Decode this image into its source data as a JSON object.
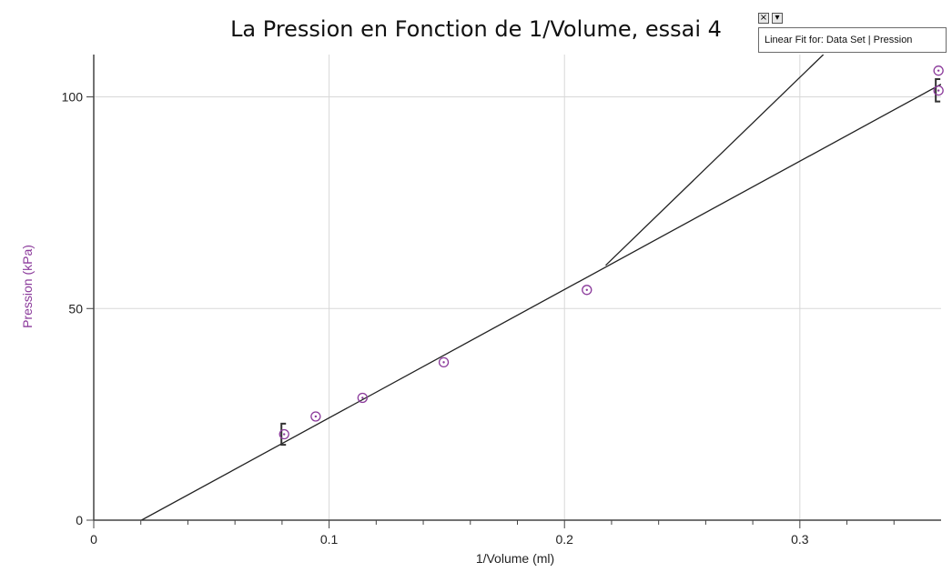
{
  "chart_data": {
    "type": "scatter",
    "title": "La Pression en Fonction de 1/Volume, essai 4",
    "xlabel": "1/Volume  (ml)",
    "ylabel": "Pression  (kPa)",
    "xlim": [
      0,
      0.36
    ],
    "ylim": [
      0,
      110
    ],
    "x_ticks": [
      "0",
      "0.1",
      "0.2",
      "0.3"
    ],
    "y_ticks": [
      "0",
      "50",
      "100"
    ],
    "grid": true,
    "series": [
      {
        "points": [
          {
            "x": 0.0809,
            "y": 20.3
          },
          {
            "x": 0.0943,
            "y": 24.5
          },
          {
            "x": 0.1142,
            "y": 28.9
          },
          {
            "x": 0.1487,
            "y": 37.3
          },
          {
            "x": 0.2095,
            "y": 54.4
          },
          {
            "x": 0.3589,
            "y": 106.2
          },
          {
            "x": 0.3589,
            "y": 101.5
          }
        ],
        "color": "#8b3a9b"
      }
    ],
    "fit_lines": [
      {
        "x": [
          0.0203,
          0.36
        ],
        "y": [
          0,
          103.0
        ],
        "color": "#222222"
      },
      {
        "x": [
          0.2175,
          0.31
        ],
        "y": [
          60.2,
          110
        ],
        "color": "#222222"
      }
    ],
    "error_brackets": [
      {
        "x": 0.0809,
        "y_min": 17.8,
        "y_max": 22.8
      },
      {
        "x": 0.3589,
        "y_min": 98.9,
        "y_max": 104.2
      }
    ]
  },
  "fit_annotation": {
    "label": "Linear Fit for: Data Set | Pression",
    "close_glyph": "×",
    "options_glyph": "▾"
  },
  "colors": {
    "axis_label": "#8b3a9b",
    "grid": "#d8d8d8",
    "point": "#8b3a9b"
  }
}
